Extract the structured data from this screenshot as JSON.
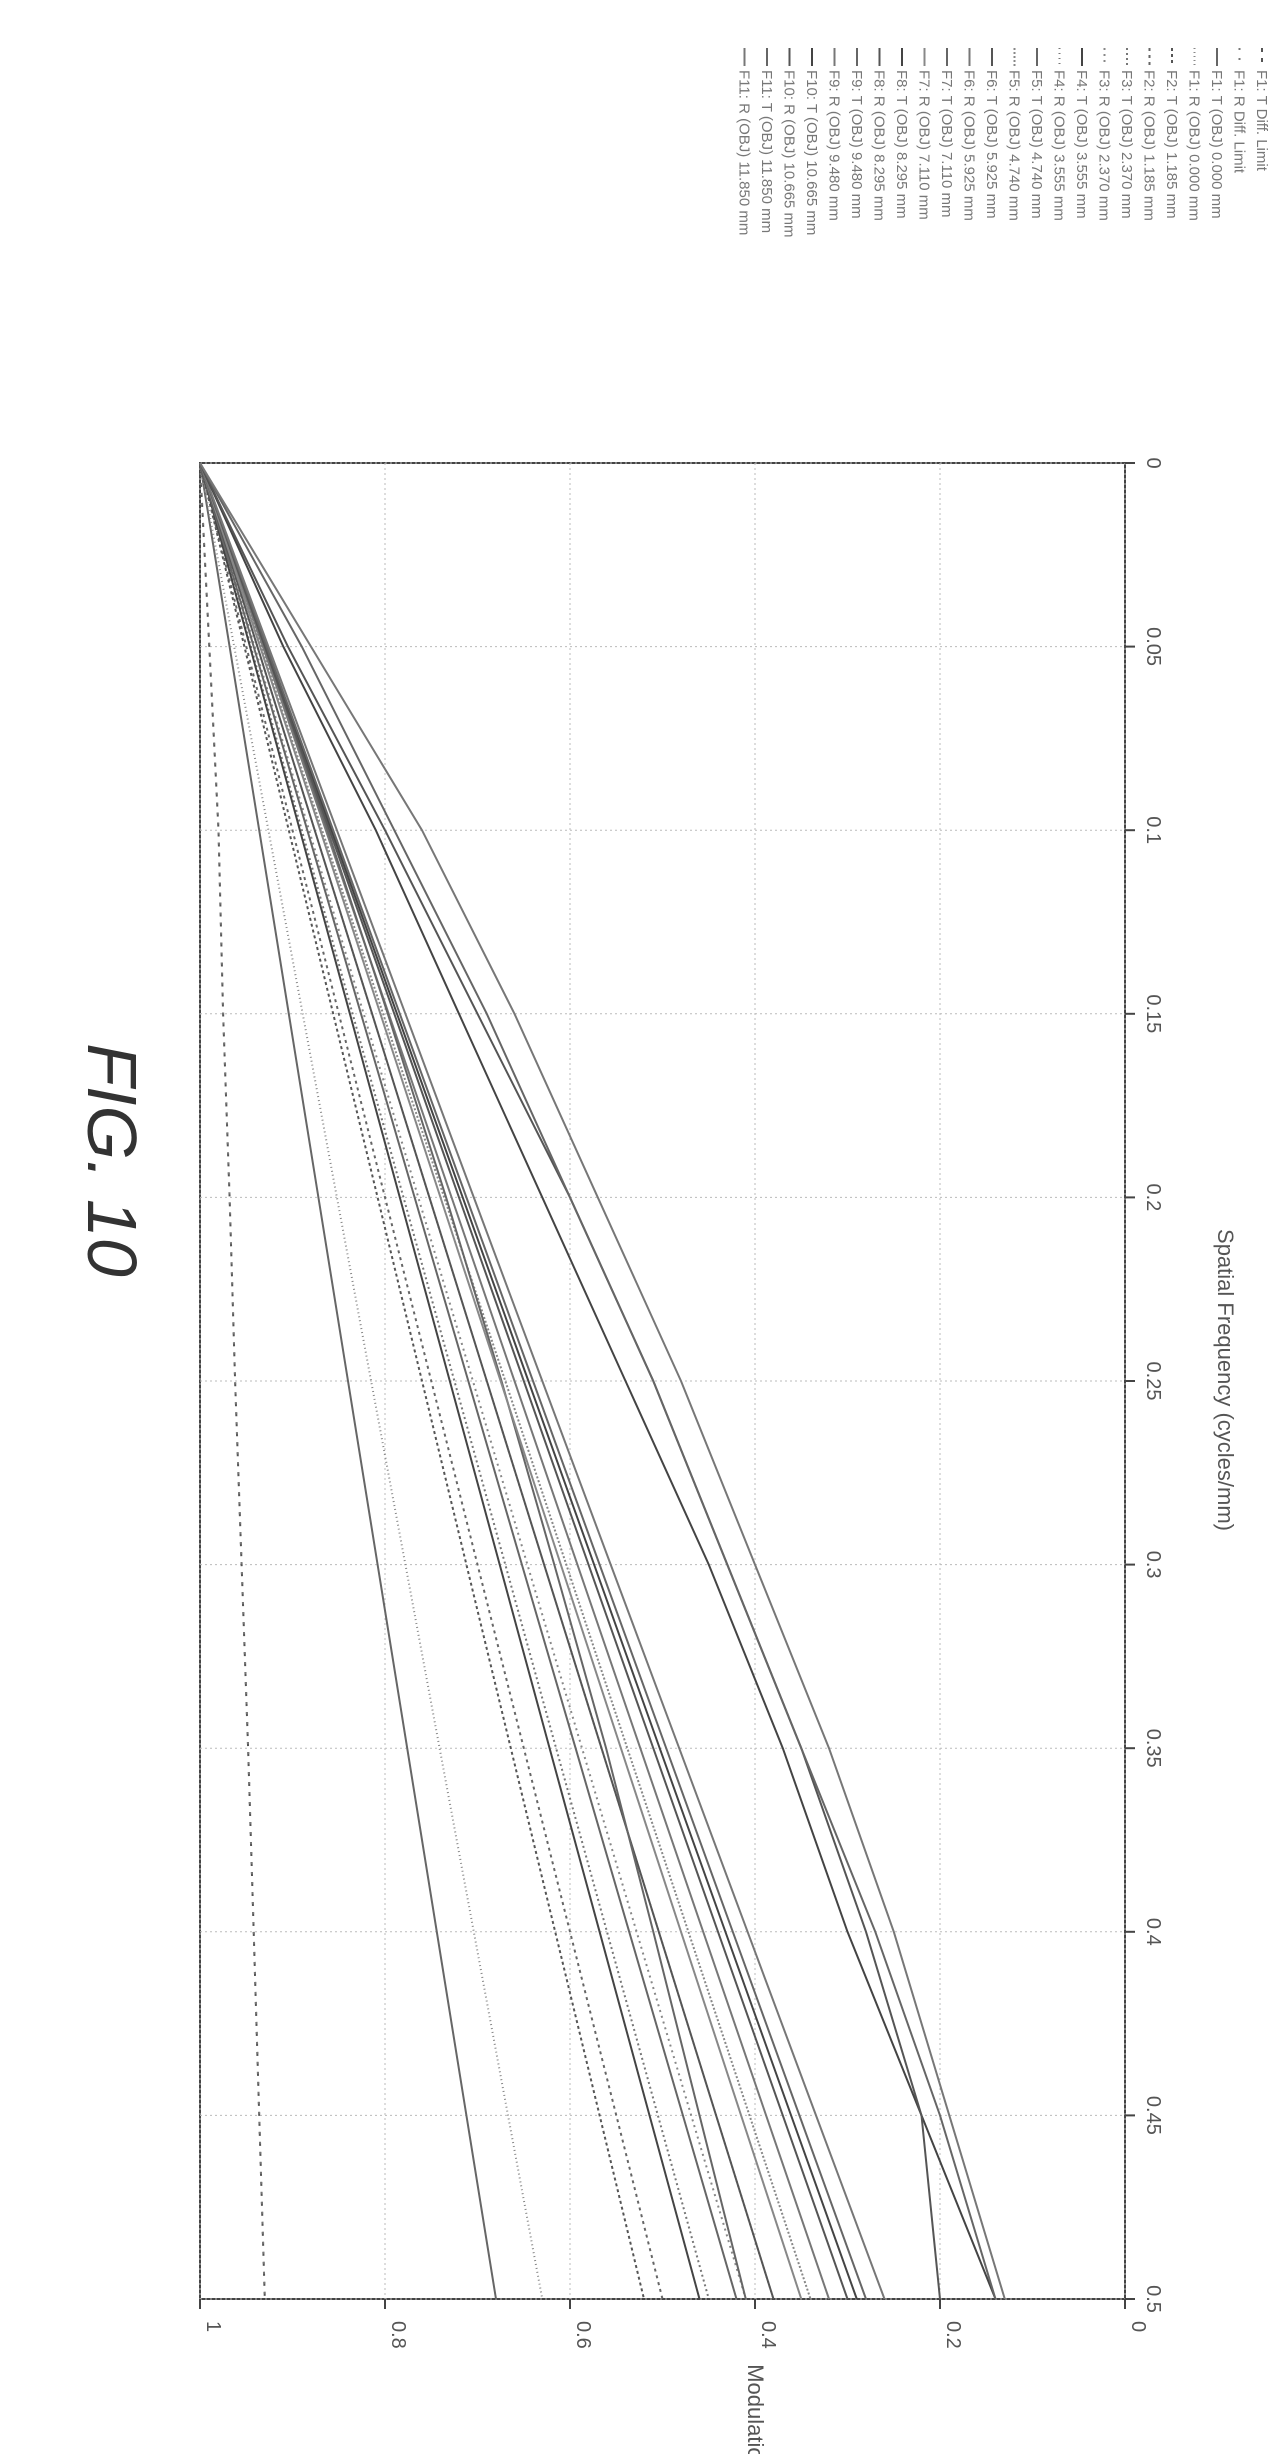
{
  "figure": {
    "title": "FIG. 10"
  },
  "chart_data": {
    "type": "line",
    "title": "",
    "xlabel": "Spatial Frequency (cycles/mm)",
    "ylabel": "Modulation",
    "xlim": [
      0,
      0.5
    ],
    "ylim": [
      0,
      1
    ],
    "x_ticks": [
      "0",
      "0.05",
      "0.1",
      "0.15",
      "0.2",
      "0.25",
      "0.3",
      "0.35",
      "0.4",
      "0.45",
      "0.5"
    ],
    "y_ticks": [
      "0",
      "0.2",
      "0.4",
      "0.6",
      "0.8",
      "1"
    ],
    "grid": true,
    "legend_position": "right",
    "x": [
      0,
      0.05,
      0.1,
      0.15,
      0.2,
      0.25,
      0.3,
      0.35,
      0.4,
      0.45,
      0.5
    ],
    "series": [
      {
        "name": "F1: T Diff. Limit",
        "values": [
          1,
          0.99,
          0.98,
          0.975,
          0.968,
          0.962,
          0.955,
          0.948,
          0.942,
          0.936,
          0.93
        ],
        "color": "#555555",
        "dash": "4,6"
      },
      {
        "name": "F1: R Diff. Limit",
        "values": [
          1,
          0.99,
          0.98,
          0.975,
          0.968,
          0.962,
          0.955,
          0.948,
          0.942,
          0.936,
          0.93
        ],
        "color": "#777777",
        "dash": "2,8"
      },
      {
        "name": "F1: T (OBJ) 0.000 mm",
        "values": [
          1,
          0.968,
          0.936,
          0.904,
          0.872,
          0.84,
          0.808,
          0.776,
          0.744,
          0.712,
          0.68
        ],
        "color": "#666666",
        "dash": ""
      },
      {
        "name": "F1: R (OBJ) 0.000 mm",
        "values": [
          1,
          0.963,
          0.926,
          0.889,
          0.852,
          0.815,
          0.778,
          0.741,
          0.704,
          0.667,
          0.63
        ],
        "color": "#888888",
        "dash": "1,3"
      },
      {
        "name": "F2: T (OBJ) 1.185 mm",
        "values": [
          1,
          0.952,
          0.904,
          0.856,
          0.808,
          0.76,
          0.712,
          0.664,
          0.616,
          0.568,
          0.52
        ],
        "color": "#555555",
        "dash": "3,3"
      },
      {
        "name": "F2: R (OBJ) 1.185 mm",
        "values": [
          1,
          0.95,
          0.9,
          0.85,
          0.8,
          0.75,
          0.7,
          0.65,
          0.6,
          0.55,
          0.5
        ],
        "color": "#666666",
        "dash": "3,4"
      },
      {
        "name": "F3: T (OBJ) 2.370 mm",
        "values": [
          1,
          0.945,
          0.89,
          0.835,
          0.78,
          0.725,
          0.67,
          0.615,
          0.56,
          0.505,
          0.45
        ],
        "color": "#777777",
        "dash": "2,3"
      },
      {
        "name": "F3: R (OBJ) 2.370 mm",
        "values": [
          1,
          0.941,
          0.882,
          0.823,
          0.764,
          0.705,
          0.646,
          0.587,
          0.528,
          0.469,
          0.41
        ],
        "color": "#888888",
        "dash": "2,4"
      },
      {
        "name": "F4: T (OBJ) 3.555 mm",
        "values": [
          1,
          0.946,
          0.892,
          0.838,
          0.784,
          0.73,
          0.676,
          0.622,
          0.568,
          0.514,
          0.46
        ],
        "color": "#444444",
        "dash": ""
      },
      {
        "name": "F4: R (OBJ) 3.555 mm",
        "values": [
          1,
          0.938,
          0.876,
          0.814,
          0.752,
          0.69,
          0.628,
          0.566,
          0.504,
          0.442,
          0.38
        ],
        "color": "#777777",
        "dash": "1,4"
      },
      {
        "name": "F5: T (OBJ) 4.740 mm",
        "values": [
          1,
          0.942,
          0.884,
          0.826,
          0.768,
          0.71,
          0.652,
          0.594,
          0.536,
          0.478,
          0.42
        ],
        "color": "#666666",
        "dash": ""
      },
      {
        "name": "F5: R (OBJ) 4.740 mm",
        "values": [
          1,
          0.934,
          0.868,
          0.802,
          0.736,
          0.67,
          0.604,
          0.538,
          0.472,
          0.406,
          0.34
        ],
        "color": "#888888",
        "dash": "2,2"
      },
      {
        "name": "F6: T (OBJ) 5.925 mm",
        "values": [
          1,
          0.938,
          0.876,
          0.814,
          0.752,
          0.69,
          0.628,
          0.566,
          0.504,
          0.442,
          0.38
        ],
        "color": "#555555",
        "dash": ""
      },
      {
        "name": "F6: R (OBJ) 5.925 mm",
        "values": [
          1,
          0.932,
          0.864,
          0.796,
          0.728,
          0.66,
          0.592,
          0.524,
          0.456,
          0.388,
          0.32
        ],
        "color": "#777777",
        "dash": ""
      },
      {
        "name": "F7: T (OBJ) 7.110 mm",
        "values": [
          1,
          0.93,
          0.862,
          0.797,
          0.734,
          0.674,
          0.617,
          0.561,
          0.51,
          0.46,
          0.41
        ],
        "color": "#666666",
        "dash": ""
      },
      {
        "name": "F7: R (OBJ) 7.110 mm",
        "values": [
          1,
          0.935,
          0.87,
          0.805,
          0.74,
          0.675,
          0.61,
          0.545,
          0.48,
          0.415,
          0.35
        ],
        "color": "#888888",
        "dash": ""
      },
      {
        "name": "F8: T (OBJ) 8.295 mm",
        "values": [
          1,
          0.929,
          0.858,
          0.787,
          0.716,
          0.645,
          0.574,
          0.503,
          0.432,
          0.361,
          0.29
        ],
        "color": "#444444",
        "dash": ""
      },
      {
        "name": "F8: R (OBJ) 8.295 mm",
        "values": [
          1,
          0.93,
          0.86,
          0.79,
          0.72,
          0.65,
          0.58,
          0.51,
          0.44,
          0.37,
          0.3
        ],
        "color": "#555555",
        "dash": ""
      },
      {
        "name": "F9: T (OBJ) 9.480 mm",
        "values": [
          1,
          0.928,
          0.856,
          0.784,
          0.712,
          0.64,
          0.568,
          0.496,
          0.424,
          0.352,
          0.28
        ],
        "color": "#666666",
        "dash": ""
      },
      {
        "name": "F9: R (OBJ) 9.480 mm",
        "values": [
          1,
          0.926,
          0.852,
          0.778,
          0.704,
          0.63,
          0.556,
          0.482,
          0.408,
          0.334,
          0.26
        ],
        "color": "#777777",
        "dash": ""
      },
      {
        "name": "F10: T (OBJ) 10.665 mm",
        "values": [
          1,
          0.91,
          0.81,
          0.72,
          0.63,
          0.54,
          0.45,
          0.37,
          0.3,
          0.22,
          0.14
        ],
        "color": "#444444",
        "dash": ""
      },
      {
        "name": "F10: R (OBJ) 10.665 mm",
        "values": [
          1,
          0.905,
          0.8,
          0.7,
          0.6,
          0.51,
          0.43,
          0.35,
          0.28,
          0.22,
          0.2
        ],
        "color": "#555555",
        "dash": ""
      },
      {
        "name": "F11: T (OBJ) 11.850 mm",
        "values": [
          1,
          0.89,
          0.79,
          0.69,
          0.6,
          0.51,
          0.43,
          0.35,
          0.27,
          0.2,
          0.14
        ],
        "color": "#666666",
        "dash": ""
      },
      {
        "name": "F11: R (OBJ) 11.850 mm",
        "values": [
          1,
          0.88,
          0.76,
          0.66,
          0.57,
          0.48,
          0.4,
          0.32,
          0.25,
          0.19,
          0.13
        ],
        "color": "#777777",
        "dash": ""
      }
    ]
  }
}
